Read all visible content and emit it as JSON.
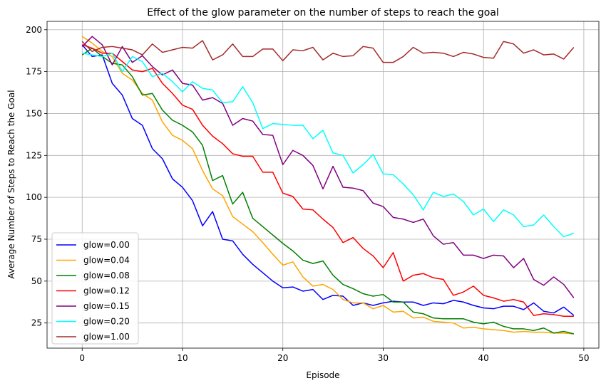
{
  "chart_data": {
    "type": "line",
    "title": "Effect of the glow parameter on the number of steps to reach the goal",
    "xlabel": "Episode",
    "ylabel": "Average Number of Steps to Reach the Goal",
    "xlim": [
      -3.5,
      51.5
    ],
    "ylim": [
      10,
      205
    ],
    "xticks": [
      0,
      10,
      20,
      30,
      40,
      50
    ],
    "yticks": [
      25,
      50,
      75,
      100,
      125,
      150,
      175,
      200
    ],
    "grid": true,
    "legend_position": "lower-left",
    "x": [
      0,
      1,
      2,
      3,
      4,
      5,
      6,
      7,
      8,
      9,
      10,
      11,
      12,
      13,
      14,
      15,
      16,
      17,
      18,
      19,
      20,
      21,
      22,
      23,
      24,
      25,
      26,
      27,
      28,
      29,
      30,
      31,
      32,
      33,
      34,
      35,
      36,
      37,
      38,
      39,
      40,
      41,
      42,
      43,
      44,
      45,
      46,
      47,
      48,
      49
    ],
    "series": [
      {
        "name": "glow=0.00",
        "color": "#0000ff",
        "values": [
          191,
          184,
          185,
          168,
          161,
          147,
          143,
          129,
          123,
          111,
          106,
          98,
          83,
          91.5,
          75,
          74,
          66,
          60,
          55,
          50,
          46,
          46.5,
          44,
          45,
          39,
          41.5,
          41,
          35.5,
          37,
          35.5,
          37,
          38,
          37.5,
          37.5,
          35.5,
          37,
          36.5,
          38.5,
          37.5,
          35.5,
          34,
          33.5,
          35,
          35,
          33,
          37,
          32,
          31,
          34.5,
          29.5
        ]
      },
      {
        "name": "glow=0.04",
        "color": "#ffa500",
        "values": [
          196,
          192,
          187,
          184,
          174,
          170,
          162,
          158,
          145,
          137,
          134,
          129,
          116,
          105,
          101,
          88.5,
          84,
          79.5,
          73,
          66,
          59.5,
          61.5,
          52.5,
          47,
          48,
          45,
          39,
          37,
          37,
          33.5,
          35.5,
          31.5,
          32,
          28,
          28.5,
          26,
          25.5,
          25,
          22,
          22.5,
          21.5,
          21,
          20.5,
          19.5,
          20,
          19.5,
          19.5,
          19,
          19,
          18.5
        ]
      },
      {
        "name": "glow=0.08",
        "color": "#008000",
        "values": [
          185,
          189,
          184,
          180,
          179,
          172,
          161,
          162,
          152,
          146,
          143,
          139,
          131,
          110,
          113,
          96,
          103,
          87.5,
          82.5,
          77.5,
          72.5,
          68,
          62.5,
          60.5,
          62,
          53.5,
          48,
          45.5,
          42.5,
          41,
          42,
          37.5,
          37.5,
          31.5,
          30.5,
          28,
          27.5,
          27.5,
          27.5,
          25.5,
          24.5,
          25.5,
          23,
          21.5,
          21.5,
          20.5,
          22,
          19,
          20,
          18.5
        ]
      },
      {
        "name": "glow=0.12",
        "color": "#ff0000",
        "values": [
          191,
          189,
          186,
          186,
          181,
          176,
          175,
          177,
          168,
          162,
          155,
          152.5,
          143,
          136.5,
          132,
          126,
          124.5,
          124.5,
          115,
          115,
          102.5,
          100.5,
          93,
          92.5,
          87,
          82,
          73,
          76,
          69.5,
          65,
          58,
          67,
          50,
          53.5,
          54.5,
          52,
          51,
          41.5,
          43.5,
          47,
          41.5,
          40,
          38,
          39,
          37.5,
          29.5,
          30.5,
          30,
          29,
          29
        ]
      },
      {
        "name": "glow=0.15",
        "color": "#800080",
        "values": [
          190,
          196,
          191,
          179,
          190,
          180.5,
          184.5,
          178,
          173,
          176,
          168,
          167,
          158,
          159.5,
          156,
          143,
          147,
          145.5,
          137.5,
          137,
          119.5,
          128,
          125,
          119,
          105,
          118.5,
          106,
          105.5,
          104,
          96.5,
          94.5,
          88,
          87,
          85,
          87,
          77,
          72,
          73,
          65.5,
          65.5,
          63.5,
          65.5,
          65,
          58,
          63.5,
          51,
          47.5,
          52.5,
          48,
          40
        ]
      },
      {
        "name": "glow=0.20",
        "color": "#00ffff",
        "values": [
          186,
          185,
          184,
          186,
          175,
          184,
          181,
          172,
          174,
          169,
          163,
          169,
          165,
          164,
          156.5,
          157,
          166,
          156.5,
          141,
          144,
          143.5,
          143,
          143,
          135,
          140,
          126.5,
          125,
          114.5,
          119.5,
          125.5,
          114,
          113.5,
          108,
          101.5,
          92.5,
          103,
          100.5,
          102,
          97.5,
          89.5,
          93,
          85.5,
          92.5,
          89.5,
          82.5,
          83.5,
          89.5,
          82.5,
          76.5,
          78.5
        ]
      },
      {
        "name": "glow=1.00",
        "color": "#a52a2a",
        "values": [
          193,
          187,
          189.5,
          190,
          189,
          188,
          185,
          191.5,
          186.5,
          188,
          189.5,
          189,
          193.5,
          182,
          185,
          191.5,
          184,
          184,
          188.5,
          188.5,
          181.5,
          188,
          187.5,
          189.5,
          182,
          186,
          184,
          184.5,
          190,
          189,
          180.5,
          180.5,
          184,
          189.5,
          186,
          186.5,
          186,
          184,
          186.5,
          185.5,
          183.5,
          183,
          193,
          191.5,
          186,
          188,
          185,
          185.5,
          182.5,
          189.5
        ]
      }
    ]
  }
}
